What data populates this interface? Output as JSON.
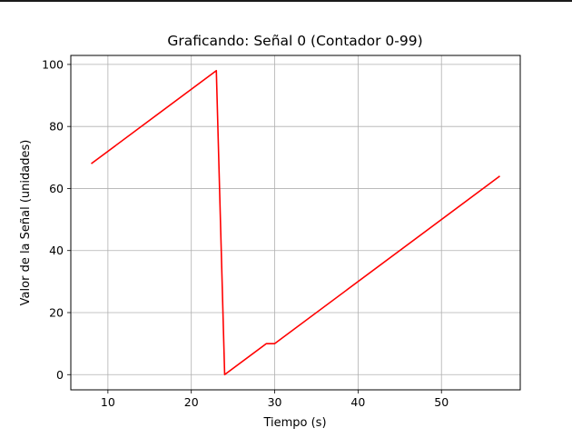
{
  "chart_data": {
    "type": "line",
    "title": "Graficando: Señal 0 (Contador 0-99)",
    "xlabel": "Tiempo (s)",
    "ylabel": "Valor de la Señal (unidades)",
    "xlim": [
      5.55,
      59.45
    ],
    "ylim": [
      -4.9,
      102.9
    ],
    "xticks": [
      10,
      20,
      30,
      40,
      50
    ],
    "yticks": [
      0,
      20,
      40,
      60,
      80,
      100
    ],
    "grid": true,
    "series": [
      {
        "color": "#ff0000",
        "x": [
          8,
          23,
          24,
          29,
          30,
          57
        ],
        "y": [
          68,
          98,
          0,
          10,
          10,
          64
        ]
      }
    ]
  }
}
